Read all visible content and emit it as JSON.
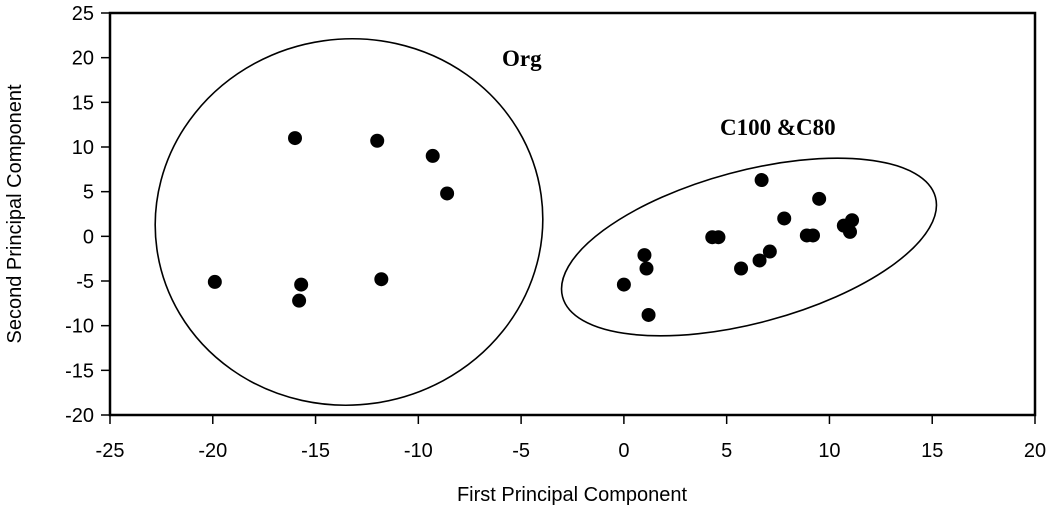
{
  "chart_data": {
    "type": "scatter",
    "title": "",
    "xlabel": "First Principal Component",
    "ylabel": "Second Principal Component",
    "xlim": [
      -25,
      20
    ],
    "ylim": [
      -20,
      25
    ],
    "xticks": [
      -25,
      -20,
      -15,
      -10,
      -5,
      0,
      5,
      10,
      15,
      20
    ],
    "yticks": [
      -20,
      -15,
      -10,
      -5,
      0,
      5,
      10,
      15,
      20,
      25
    ],
    "grid": false,
    "legend": null,
    "series": [
      {
        "name": "Org",
        "marker": "filled-circle",
        "color": "#000000",
        "points": [
          [
            -16.0,
            11.0
          ],
          [
            -12.0,
            10.7
          ],
          [
            -9.3,
            9.0
          ],
          [
            -8.6,
            4.8
          ],
          [
            -19.9,
            -5.1
          ],
          [
            -15.7,
            -5.4
          ],
          [
            -15.8,
            -7.2
          ],
          [
            -11.8,
            -4.8
          ]
        ]
      },
      {
        "name": "C100 &C80",
        "marker": "filled-circle",
        "color": "#000000",
        "points": [
          [
            0.0,
            -5.4
          ],
          [
            1.0,
            -2.1
          ],
          [
            1.1,
            -3.6
          ],
          [
            1.2,
            -8.8
          ],
          [
            4.3,
            -0.1
          ],
          [
            4.6,
            -0.1
          ],
          [
            5.7,
            -3.6
          ],
          [
            6.6,
            -2.7
          ],
          [
            7.1,
            -1.7
          ],
          [
            6.7,
            6.3
          ],
          [
            7.8,
            2.0
          ],
          [
            8.9,
            0.1
          ],
          [
            9.2,
            0.1
          ],
          [
            9.5,
            4.2
          ],
          [
            10.7,
            1.2
          ],
          [
            11.1,
            1.8
          ],
          [
            11.0,
            0.5
          ]
        ]
      }
    ],
    "annotations": [
      {
        "text": "Org",
        "x": -6.5,
        "y": 20.0,
        "bold": true
      },
      {
        "text": "C100 &C80",
        "x": 5.3,
        "y": 9.0,
        "bold": true
      }
    ],
    "group_ellipses": [
      {
        "group": "Org",
        "cx": -13.0,
        "cy": 1.6,
        "rx_units": 9.5,
        "ry_units": 20.4,
        "rotation_deg": -8
      },
      {
        "group": "C100 &C80",
        "cx": 6.0,
        "cy": -1.2,
        "rx_units": 9.4,
        "ry_units": 8.4,
        "rotation_deg": -15
      }
    ]
  }
}
